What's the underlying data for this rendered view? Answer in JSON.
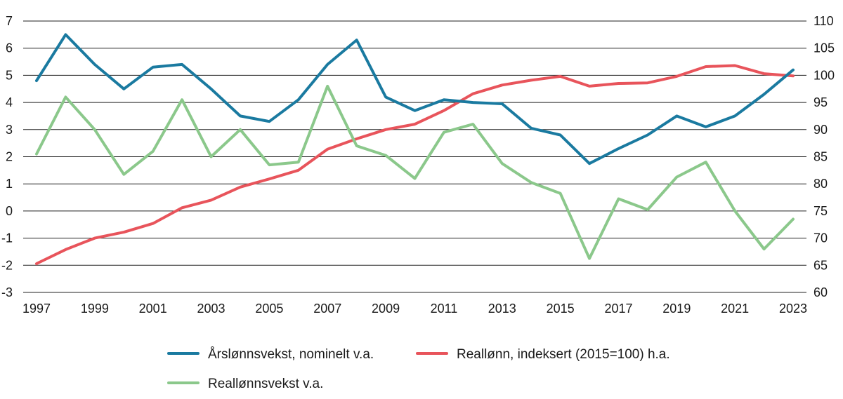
{
  "chart_data": {
    "type": "line",
    "x": [
      1997,
      1998,
      1999,
      2000,
      2001,
      2002,
      2003,
      2004,
      2005,
      2006,
      2007,
      2008,
      2009,
      2010,
      2011,
      2012,
      2013,
      2014,
      2015,
      2016,
      2017,
      2018,
      2019,
      2020,
      2021,
      2022,
      2023
    ],
    "x_tick_labels": [
      "1997",
      "1999",
      "2001",
      "2003",
      "2005",
      "2007",
      "2009",
      "2011",
      "2013",
      "2015",
      "2017",
      "2019",
      "2021",
      "2023"
    ],
    "left_axis": {
      "ylim": [
        -3,
        7
      ],
      "ticks": [
        "-3",
        "-2",
        "-1",
        "0",
        "1",
        "2",
        "3",
        "4",
        "5",
        "6",
        "7"
      ]
    },
    "right_axis": {
      "ylim": [
        60,
        110
      ],
      "ticks": [
        "60",
        "65",
        "70",
        "75",
        "80",
        "85",
        "90",
        "95",
        "100",
        "105",
        "110"
      ]
    },
    "grid": "horizontal",
    "legend_position": "bottom",
    "series": [
      {
        "name": "Årslønnsvekst, nominelt v.a.",
        "axis": "left",
        "color": "#1a7aa0",
        "values": [
          4.8,
          6.5,
          5.4,
          4.5,
          5.3,
          5.4,
          4.5,
          3.5,
          3.3,
          4.1,
          5.4,
          6.3,
          4.2,
          3.7,
          4.1,
          4.0,
          3.95,
          3.05,
          2.8,
          1.75,
          2.3,
          2.8,
          3.5,
          3.1,
          3.5,
          4.3,
          5.2
        ]
      },
      {
        "name": "Reallønn, indeksert (2015=100) h.a.",
        "axis": "right",
        "color": "#e8545b",
        "values": [
          65.3,
          67.9,
          70.0,
          71.1,
          72.7,
          75.6,
          77.0,
          79.4,
          80.9,
          82.5,
          86.4,
          88.3,
          90.0,
          91.0,
          93.5,
          96.6,
          98.2,
          99.1,
          99.8,
          98.0,
          98.5,
          98.6,
          99.8,
          101.6,
          101.8,
          100.3,
          99.9
        ]
      },
      {
        "name": "Reallønnsvekst v.a.",
        "axis": "left",
        "color": "#8bc88b",
        "values": [
          2.1,
          4.2,
          3.0,
          1.35,
          2.2,
          4.1,
          2.0,
          3.0,
          1.7,
          1.8,
          4.6,
          2.4,
          2.05,
          1.2,
          2.9,
          3.2,
          1.75,
          1.05,
          0.65,
          -1.75,
          0.45,
          0.05,
          1.25,
          1.8,
          0.0,
          -1.4,
          -0.3
        ]
      }
    ]
  }
}
